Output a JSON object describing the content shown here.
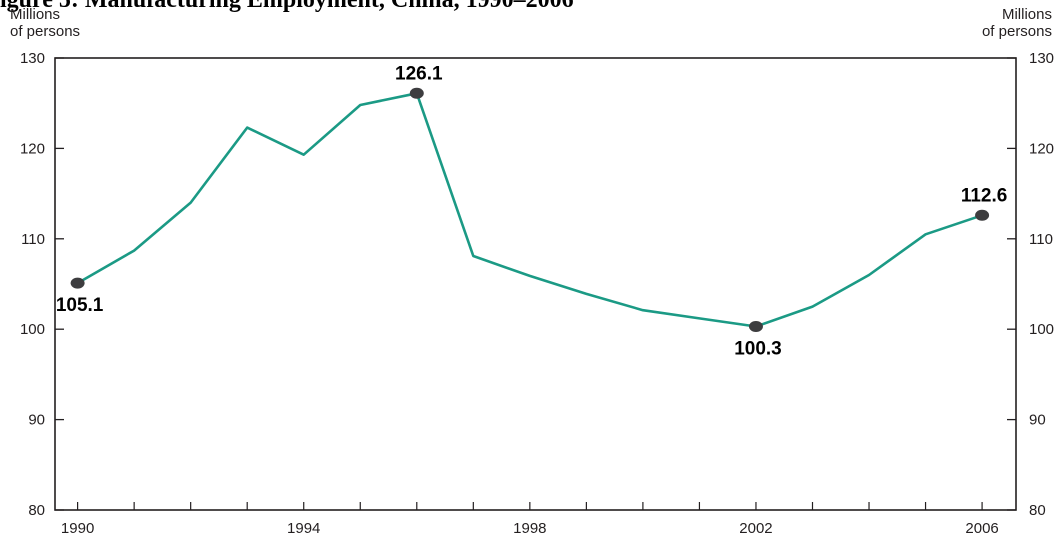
{
  "title": "igure 5: Manufacturing Employment, China, 1990–2006",
  "unit_left": [
    "Millions",
    "of persons"
  ],
  "unit_right": [
    "Millions",
    "of persons"
  ],
  "colors": {
    "line": "#1b9a85",
    "marker": "#3d3d3f",
    "axis": "#231f20"
  },
  "chart_data": {
    "type": "line",
    "title": "Manufacturing Employment, China, 1990–2006",
    "ylabel": "Millions of persons",
    "xlabel": "",
    "x": [
      1990,
      1991,
      1992,
      1993,
      1994,
      1995,
      1996,
      1997,
      1998,
      1999,
      2000,
      2001,
      2002,
      2003,
      2004,
      2005,
      2006
    ],
    "series": [
      {
        "values": [
          105.1,
          108.7,
          114.0,
          122.3,
          119.3,
          124.8,
          126.1,
          108.1,
          105.9,
          103.9,
          102.1,
          101.2,
          100.3,
          102.5,
          106.0,
          110.5,
          112.6
        ]
      }
    ],
    "xticks": [
      1990,
      1994,
      1998,
      2002,
      2006
    ],
    "yticks": [
      80,
      90,
      100,
      110,
      120,
      130
    ],
    "ylim": [
      80,
      130
    ],
    "xlim": [
      1989.6,
      2006.6
    ],
    "grid": false,
    "legend": "none",
    "labeled_points": [
      {
        "x": 1990,
        "value": 105.1,
        "label": "105.1",
        "position": "below"
      },
      {
        "x": 1996,
        "value": 126.1,
        "label": "126.1",
        "position": "above"
      },
      {
        "x": 2002,
        "value": 100.3,
        "label": "100.3",
        "position": "below"
      },
      {
        "x": 2006,
        "value": 112.6,
        "label": "112.6",
        "position": "above"
      }
    ]
  }
}
